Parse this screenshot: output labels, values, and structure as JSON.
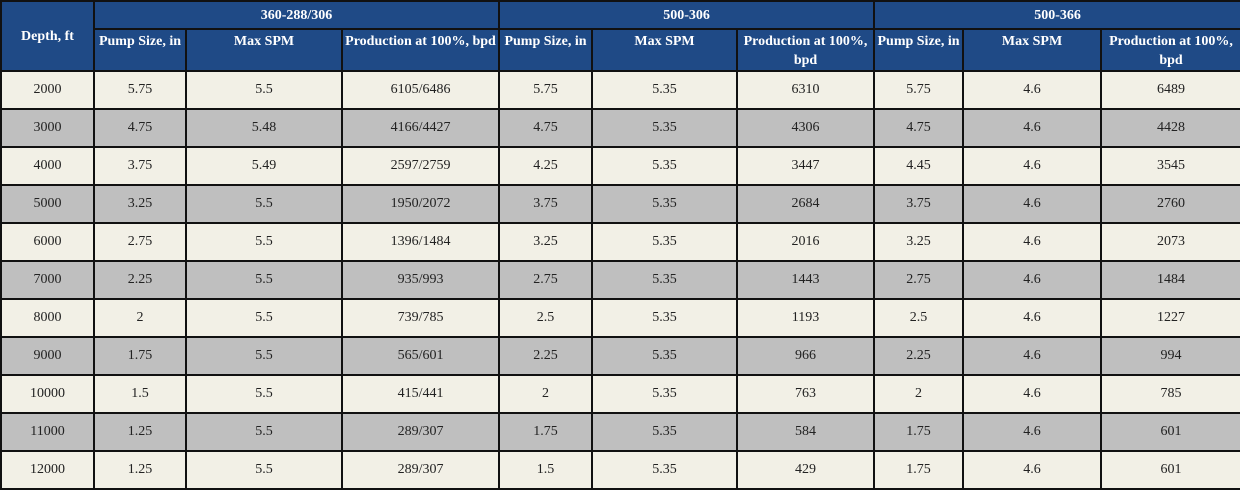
{
  "header": {
    "depth": "Depth, ft",
    "groups": [
      "360-288/306",
      "500-306",
      "500-366"
    ],
    "sub": [
      [
        "Pump Size, in",
        "Max SPM",
        "Production at 100%, bpd"
      ],
      [
        "Pump Size, in",
        "Max SPM",
        "Production at 100%, bpd"
      ],
      [
        "Pump Size, in",
        "Max SPM",
        "Production at 100%, bpd"
      ]
    ]
  },
  "rows": [
    [
      "2000",
      "5.75",
      "5.5",
      "6105/6486",
      "5.75",
      "5.35",
      "6310",
      "5.75",
      "4.6",
      "6489"
    ],
    [
      "3000",
      "4.75",
      "5.48",
      "4166/4427",
      "4.75",
      "5.35",
      "4306",
      "4.75",
      "4.6",
      "4428"
    ],
    [
      "4000",
      "3.75",
      "5.49",
      "2597/2759",
      "4.25",
      "5.35",
      "3447",
      "4.45",
      "4.6",
      "3545"
    ],
    [
      "5000",
      "3.25",
      "5.5",
      "1950/2072",
      "3.75",
      "5.35",
      "2684",
      "3.75",
      "4.6",
      "2760"
    ],
    [
      "6000",
      "2.75",
      "5.5",
      "1396/1484",
      "3.25",
      "5.35",
      "2016",
      "3.25",
      "4.6",
      "2073"
    ],
    [
      "7000",
      "2.25",
      "5.5",
      "935/993",
      "2.75",
      "5.35",
      "1443",
      "2.75",
      "4.6",
      "1484"
    ],
    [
      "8000",
      "2",
      "5.5",
      "739/785",
      "2.5",
      "5.35",
      "1193",
      "2.5",
      "4.6",
      "1227"
    ],
    [
      "9000",
      "1.75",
      "5.5",
      "565/601",
      "2.25",
      "5.35",
      "966",
      "2.25",
      "4.6",
      "994"
    ],
    [
      "10000",
      "1.5",
      "5.5",
      "415/441",
      "2",
      "5.35",
      "763",
      "2",
      "4.6",
      "785"
    ],
    [
      "11000",
      "1.25",
      "5.5",
      "289/307",
      "1.75",
      "5.35",
      "584",
      "1.75",
      "4.6",
      "601"
    ],
    [
      "12000",
      "1.25",
      "5.5",
      "289/307",
      "1.5",
      "5.35",
      "429",
      "1.75",
      "4.6",
      "601"
    ]
  ]
}
